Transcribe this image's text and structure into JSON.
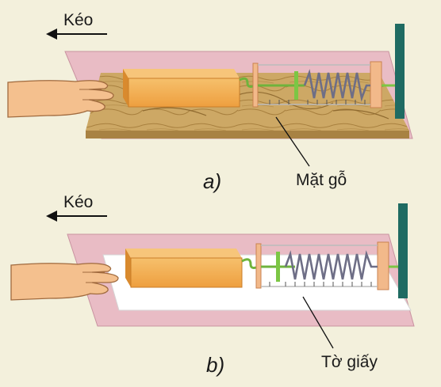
{
  "panel_a": {
    "pull_label": "Kéo",
    "surface_label": "Mặt gỗ",
    "caption": "a)"
  },
  "panel_b": {
    "pull_label": "Kéo",
    "surface_label": "Tờ giấy",
    "caption": "b)"
  },
  "colors": {
    "background": "#f3f0dc",
    "table_pink": "#e9bcc5",
    "wood": "#c9a55e",
    "block": "#f0a84a",
    "spring_frame": "#f2b98a",
    "post": "#1f6b62",
    "dyno_green": "#7cc644"
  }
}
